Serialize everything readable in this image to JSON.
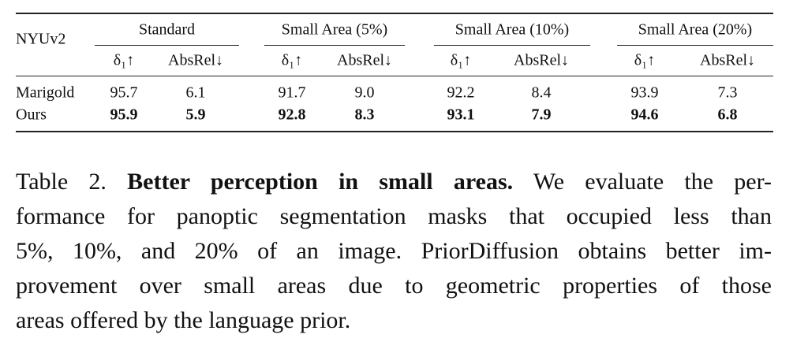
{
  "table": {
    "dataset": "NYUv2",
    "groups": [
      "Standard",
      "Small Area (5%)",
      "Small Area (10%)",
      "Small Area (20%)"
    ],
    "subheaders": [
      "δ₁↑",
      "AbsRel↓",
      "δ₁↑",
      "AbsRel↓",
      "δ₁↑",
      "AbsRel↓",
      "δ₁↑",
      "AbsRel↓"
    ],
    "rows": [
      {
        "method": "Marigold",
        "values": [
          "95.7",
          "6.1",
          "91.7",
          "9.0",
          "92.2",
          "8.4",
          "93.9",
          "7.3"
        ],
        "bold": false
      },
      {
        "method": "Ours",
        "values": [
          "95.9",
          "5.9",
          "92.8",
          "8.3",
          "93.1",
          "7.9",
          "94.6",
          "6.8"
        ],
        "bold": true
      }
    ]
  },
  "caption": {
    "label": "Table 2.",
    "title": "Better perception in small areas.",
    "lines": [
      "We evaluate the per-",
      "formance for panoptic segmentation masks that occupied less than",
      "5%, 10%, and 20% of an image. PriorDiffusion obtains better im-",
      "provement over small areas due to geometric properties of those",
      "areas offered by the language prior."
    ]
  }
}
